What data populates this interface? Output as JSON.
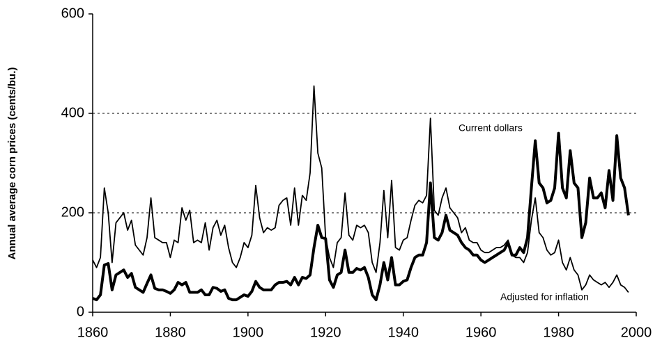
{
  "chart_data": {
    "type": "line",
    "y_label": "Annual average corn prices (cents/bu.)",
    "xlim": [
      1860,
      2000
    ],
    "xticks": [
      1860,
      1880,
      1900,
      1920,
      1940,
      1960,
      1980,
      2000
    ],
    "ylim": [
      0,
      600
    ],
    "yticks": [
      0,
      200,
      400,
      600
    ],
    "grid": true,
    "x": [
      1860,
      1861,
      1862,
      1863,
      1864,
      1865,
      1866,
      1867,
      1868,
      1869,
      1870,
      1871,
      1872,
      1873,
      1874,
      1875,
      1876,
      1877,
      1878,
      1879,
      1880,
      1881,
      1882,
      1883,
      1884,
      1885,
      1886,
      1887,
      1888,
      1889,
      1890,
      1891,
      1892,
      1893,
      1894,
      1895,
      1896,
      1897,
      1898,
      1899,
      1900,
      1901,
      1902,
      1903,
      1904,
      1905,
      1906,
      1907,
      1908,
      1909,
      1910,
      1911,
      1912,
      1913,
      1914,
      1915,
      1916,
      1917,
      1918,
      1919,
      1920,
      1921,
      1922,
      1923,
      1924,
      1925,
      1926,
      1927,
      1928,
      1929,
      1930,
      1931,
      1932,
      1933,
      1934,
      1935,
      1936,
      1937,
      1938,
      1939,
      1940,
      1941,
      1942,
      1943,
      1944,
      1945,
      1946,
      1947,
      1948,
      1949,
      1950,
      1951,
      1952,
      1953,
      1954,
      1955,
      1956,
      1957,
      1958,
      1959,
      1960,
      1961,
      1962,
      1963,
      1964,
      1965,
      1966,
      1967,
      1968,
      1969,
      1970,
      1971,
      1972,
      1973,
      1974,
      1975,
      1976,
      1977,
      1978,
      1979,
      1980,
      1981,
      1982,
      1983,
      1984,
      1985,
      1986,
      1987,
      1988,
      1989,
      1990,
      1991,
      1992,
      1993,
      1994,
      1995,
      1996,
      1997,
      1998
    ],
    "series": [
      {
        "name": "Current dollars",
        "color": "#000000",
        "values": [
          28,
          25,
          35,
          95,
          98,
          45,
          75,
          80,
          85,
          70,
          78,
          50,
          45,
          40,
          58,
          75,
          48,
          45,
          45,
          42,
          38,
          45,
          60,
          55,
          60,
          40,
          40,
          40,
          45,
          35,
          35,
          50,
          48,
          42,
          45,
          28,
          25,
          25,
          30,
          35,
          32,
          42,
          62,
          50,
          45,
          45,
          45,
          55,
          60,
          60,
          62,
          55,
          70,
          55,
          70,
          68,
          75,
          130,
          175,
          150,
          148,
          65,
          50,
          75,
          80,
          125,
          80,
          80,
          88,
          85,
          90,
          70,
          35,
          25,
          55,
          100,
          65,
          110,
          55,
          55,
          62,
          65,
          90,
          110,
          115,
          115,
          140,
          260,
          150,
          145,
          160,
          195,
          165,
          160,
          155,
          140,
          130,
          125,
          115,
          115,
          105,
          100,
          105,
          110,
          115,
          120,
          125,
          140,
          115,
          115,
          130,
          120,
          150,
          250,
          345,
          260,
          250,
          220,
          225,
          250,
          360,
          250,
          230,
          325,
          260,
          250,
          150,
          180,
          270,
          230,
          230,
          240,
          210,
          285,
          225,
          355,
          270,
          250,
          195
        ]
      },
      {
        "name": "Adjusted for inflation",
        "color": "#000000",
        "values": [
          105,
          90,
          110,
          250,
          200,
          100,
          180,
          190,
          200,
          165,
          185,
          135,
          125,
          115,
          150,
          230,
          150,
          145,
          140,
          140,
          110,
          145,
          140,
          210,
          185,
          205,
          140,
          145,
          140,
          180,
          125,
          170,
          185,
          155,
          175,
          130,
          100,
          90,
          110,
          140,
          130,
          155,
          255,
          190,
          160,
          170,
          165,
          170,
          215,
          225,
          230,
          175,
          250,
          175,
          235,
          225,
          280,
          455,
          320,
          290,
          150,
          110,
          90,
          140,
          150,
          240,
          155,
          145,
          175,
          170,
          175,
          160,
          100,
          80,
          140,
          245,
          150,
          265,
          130,
          125,
          145,
          150,
          185,
          215,
          225,
          220,
          235,
          390,
          205,
          195,
          230,
          250,
          210,
          200,
          190,
          160,
          170,
          145,
          140,
          140,
          125,
          120,
          120,
          125,
          130,
          130,
          135,
          145,
          115,
          110,
          110,
          100,
          120,
          185,
          230,
          160,
          150,
          125,
          115,
          120,
          145,
          100,
          85,
          110,
          85,
          75,
          45,
          55,
          75,
          65,
          60,
          55,
          60,
          50,
          60,
          75,
          55,
          50,
          40
        ]
      }
    ]
  }
}
